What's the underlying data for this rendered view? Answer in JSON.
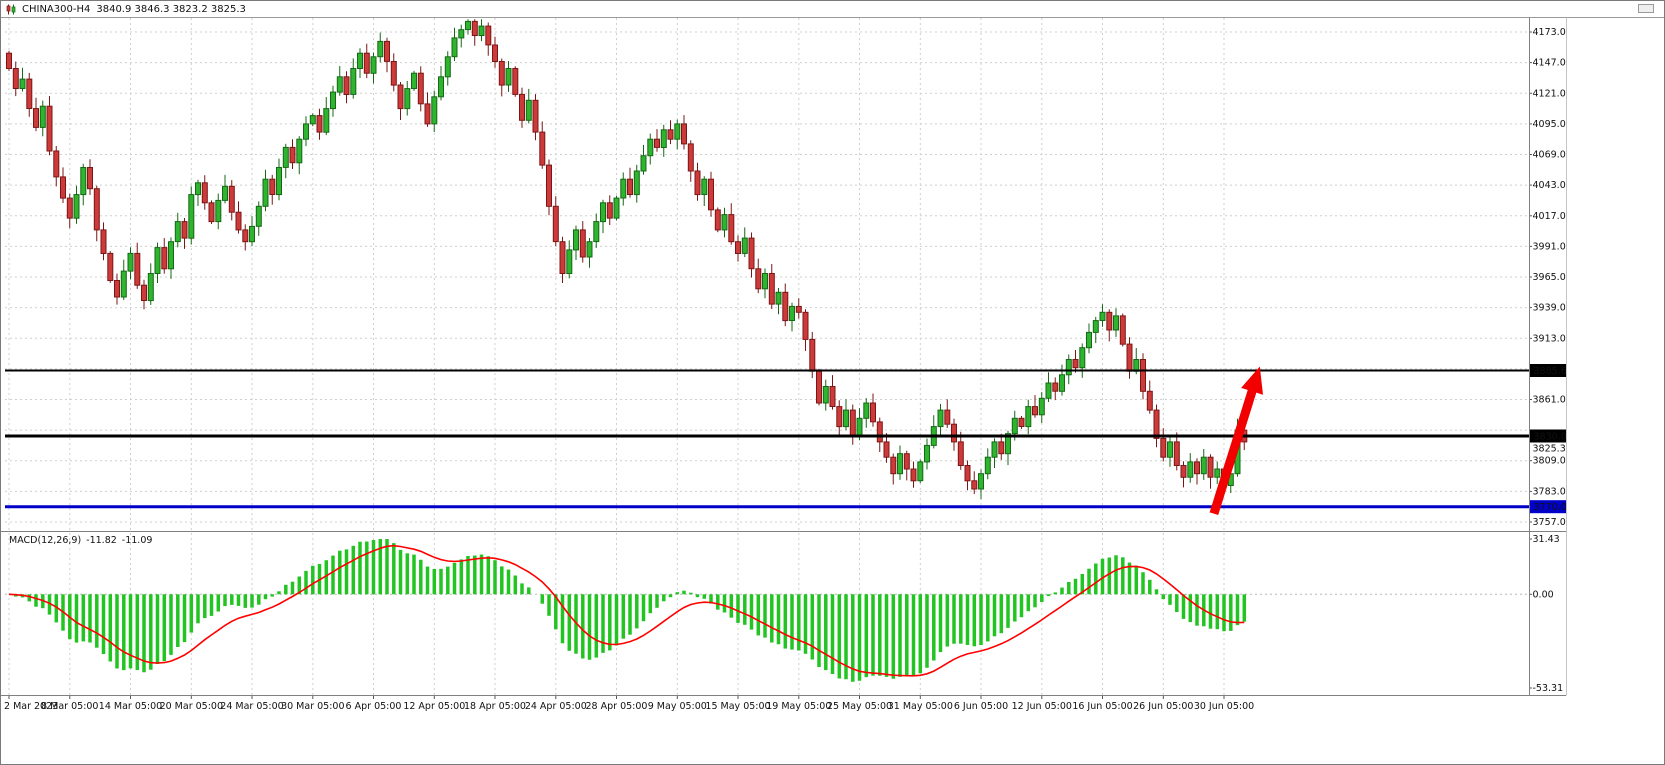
{
  "titlebar": {
    "symbol": "CHINA300-H4",
    "ohlc": "3840.9 3846.3 3823.2 3825.3"
  },
  "colors": {
    "background": "#ffffff",
    "grid": "#cfcfcf",
    "bull": "#2eb42e",
    "bull_border": "#156815",
    "bear": "#cc3a3a",
    "bear_border": "#7c1616",
    "macd_hist": "#22c422",
    "macd_signal": "#ff0000",
    "axis_text": "#111111",
    "separator": "#808080",
    "arrow": "#f20000",
    "hline_black": "#000000",
    "hline_blue": "#0000c8"
  },
  "chart_data": {
    "type": "candlestick",
    "title": "CHINA300-H4",
    "symbol": "CHINA300",
    "timeframe": "H4",
    "last_ohlc": {
      "open": "3840.9",
      "high": "3846.3",
      "low": "3823.2",
      "close": "3825.3"
    },
    "price_axis": {
      "ylim": [
        3750.2,
        4184.9
      ],
      "grid_top": 4173,
      "grid_bottom": 3757,
      "grid_step": 26,
      "ticks": [
        "4173.0",
        "4147.0",
        "4121.0",
        "4095.0",
        "4069.0",
        "4043.0",
        "4017.0",
        "3991.0",
        "3965.0",
        "3939.0",
        "3913.0",
        "3861.0",
        "3809.0",
        "3783.0",
        "3757.0"
      ]
    },
    "time_axis": {
      "label_every_n_candles": 9,
      "labels": [
        "2 Mar 2023",
        "8 Mar 05:00",
        "14 Mar 05:00",
        "20 Mar 05:00",
        "24 Mar 05:00",
        "30 Mar 05:00",
        "6 Apr 05:00",
        "12 Apr 05:00",
        "18 Apr 05:00",
        "24 Apr 05:00",
        "28 Apr 05:00",
        "9 May 05:00",
        "15 May 05:00",
        "19 May 05:00",
        "25 May 05:00",
        "31 May 05:00",
        "6 Jun 05:00",
        "12 Jun 05:00",
        "16 Jun 05:00",
        "26 Jun 05:00",
        "30 Jun 05:00"
      ]
    },
    "horizontal_lines": [
      {
        "price": 3885.6,
        "color": "#000000",
        "width": 2,
        "badge": "3885.6",
        "badge_bg": "#000000"
      },
      {
        "price": 3830.0,
        "color": "#000000",
        "width": 3,
        "badge": "3830.0",
        "badge_bg": "#000000"
      },
      {
        "price": 3770.0,
        "color": "#0000c8",
        "width": 3,
        "badge": "3770.0",
        "badge_bg": "#0000c8"
      }
    ],
    "current_price": "3825.3",
    "candles": {
      "first_open": 4155,
      "closes": [
        4142,
        4125,
        4133,
        4108,
        4092,
        4110,
        4072,
        4050,
        4032,
        4015,
        4035,
        4058,
        4040,
        4005,
        3985,
        3962,
        3948,
        3970,
        3985,
        3958,
        3945,
        3968,
        3990,
        3972,
        3995,
        4012,
        3998,
        4035,
        4045,
        4028,
        4012,
        4030,
        4042,
        4020,
        4005,
        3995,
        4008,
        4025,
        4048,
        4035,
        4058,
        4075,
        4062,
        4082,
        4095,
        4102,
        4088,
        4108,
        4122,
        4135,
        4120,
        4142,
        4155,
        4138,
        4152,
        4165,
        4148,
        4128,
        4108,
        4125,
        4138,
        4112,
        4095,
        4118,
        4135,
        4152,
        4168,
        4175,
        4182,
        4170,
        4178,
        4162,
        4148,
        4128,
        4142,
        4120,
        4098,
        4115,
        4088,
        4060,
        4025,
        3995,
        3968,
        3988,
        4005,
        3982,
        3995,
        4012,
        4028,
        4015,
        4032,
        4048,
        4035,
        4055,
        4068,
        4082,
        4075,
        4090,
        4082,
        4095,
        4078,
        4055,
        4035,
        4048,
        4022,
        4005,
        4018,
        3995,
        3985,
        3998,
        3972,
        3955,
        3968,
        3942,
        3952,
        3928,
        3940,
        3935,
        3912,
        3885,
        3858,
        3872,
        3855,
        3838,
        3852,
        3830,
        3845,
        3858,
        3842,
        3825,
        3812,
        3798,
        3815,
        3802,
        3792,
        3808,
        3822,
        3838,
        3852,
        3840,
        3825,
        3805,
        3792,
        3785,
        3798,
        3812,
        3825,
        3815,
        3832,
        3845,
        3838,
        3855,
        3848,
        3862,
        3875,
        3868,
        3882,
        3895,
        3888,
        3905,
        3918,
        3928,
        3935,
        3920,
        3932,
        3908,
        3885,
        3895,
        3868,
        3852,
        3828,
        3812,
        3825,
        3805,
        3795,
        3808,
        3798,
        3812,
        3795,
        3802,
        3788,
        3798,
        3835,
        3825
      ]
    },
    "macd": {
      "label": "MACD(12,26,9)",
      "value_main": "-11.82",
      "value_signal": "-11.09",
      "fast": 12,
      "slow": 26,
      "signal": 9,
      "axis": {
        "max": 31.43,
        "zero": "0.00",
        "min": -53.31,
        "tick_labels": [
          "31.43",
          "0.00",
          "-53.31"
        ]
      }
    },
    "annotation": {
      "arrow": {
        "from_candle": 178.5,
        "from_price": 3764,
        "to_candle": 185.3,
        "to_price": 3889,
        "color": "#f20000"
      }
    }
  }
}
